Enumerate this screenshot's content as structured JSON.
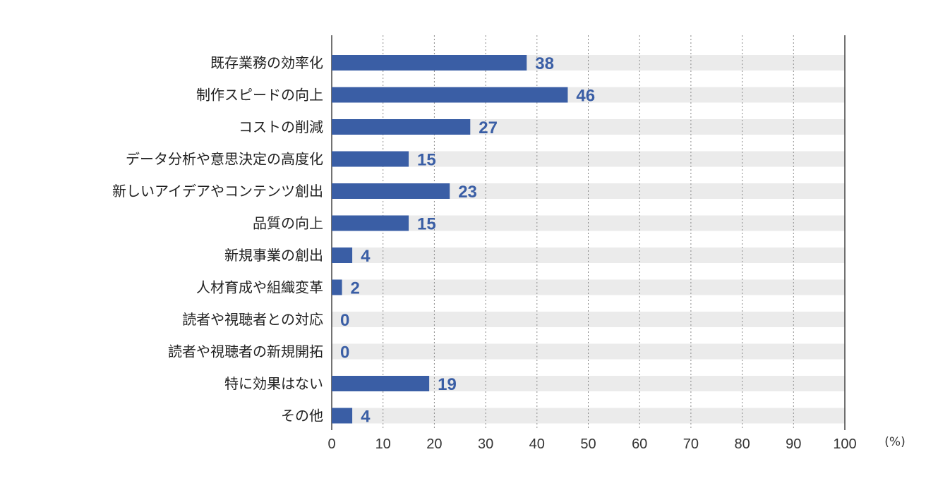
{
  "chart_data": {
    "type": "bar",
    "orientation": "horizontal",
    "categories": [
      "既存業務の効率化",
      "制作スピードの向上",
      "コストの削減",
      "データ分析や意思決定の高度化",
      "新しいアイデアやコンテンツ創出",
      "品質の向上",
      "新規事業の創出",
      "人材育成や組織変革",
      "読者や視聴者との対応",
      "読者や視聴者の新規開拓",
      "特に効果はない",
      "その他"
    ],
    "values": [
      38,
      46,
      27,
      15,
      23,
      15,
      4,
      2,
      0,
      0,
      19,
      4
    ],
    "xlim": [
      0,
      100
    ],
    "xticks": [
      0,
      10,
      20,
      30,
      40,
      50,
      60,
      70,
      80,
      90,
      100
    ],
    "unit": "(%)",
    "grid": "vertical dotted",
    "colors": {
      "bar": "#3a5ea5",
      "track": "#ebebeb",
      "value_label": "#3a5ea5"
    }
  }
}
